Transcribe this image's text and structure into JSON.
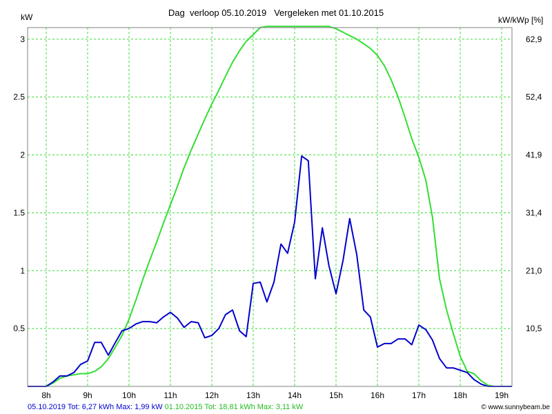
{
  "chart_data": {
    "type": "line",
    "title": "Dag  verloop 05.10.2019   Vergeleken met 01.10.2015",
    "ylabel_left": "kW",
    "ylabel_right": "kW/kWp [%]",
    "ylim": [
      0,
      3.1
    ],
    "xlim": [
      7.55,
      19.25
    ],
    "grid": true,
    "x_ticks": [
      {
        "value": 8,
        "label": "8h"
      },
      {
        "value": 9,
        "label": "9h"
      },
      {
        "value": 10,
        "label": "10h"
      },
      {
        "value": 11,
        "label": "11h"
      },
      {
        "value": 12,
        "label": "12h"
      },
      {
        "value": 13,
        "label": "13h"
      },
      {
        "value": 14,
        "label": "14h"
      },
      {
        "value": 15,
        "label": "15h"
      },
      {
        "value": 16,
        "label": "16h"
      },
      {
        "value": 17,
        "label": "17h"
      },
      {
        "value": 18,
        "label": "18h"
      },
      {
        "value": 19,
        "label": "19h"
      }
    ],
    "y_ticks_left": [
      {
        "value": 0.5,
        "label": "0.5"
      },
      {
        "value": 1,
        "label": "1"
      },
      {
        "value": 1.5,
        "label": "1.5"
      },
      {
        "value": 2,
        "label": "2"
      },
      {
        "value": 2.5,
        "label": "2.5"
      },
      {
        "value": 3,
        "label": "3"
      }
    ],
    "y_ticks_right": [
      {
        "value": 0.5,
        "label": "10,5"
      },
      {
        "value": 1.0,
        "label": "21,0"
      },
      {
        "value": 1.5,
        "label": "31,4"
      },
      {
        "value": 2.0,
        "label": "41,9"
      },
      {
        "value": 2.5,
        "label": "52,4"
      },
      {
        "value": 3.0,
        "label": "62,9"
      }
    ],
    "series": [
      {
        "name": "05.10.2019",
        "color": "#0000cc",
        "x": [
          7.55,
          8.0,
          8.17,
          8.33,
          8.5,
          8.67,
          8.83,
          9.0,
          9.17,
          9.33,
          9.5,
          9.67,
          9.83,
          10.0,
          10.17,
          10.33,
          10.5,
          10.67,
          10.83,
          11.0,
          11.17,
          11.33,
          11.5,
          11.67,
          11.83,
          12.0,
          12.17,
          12.33,
          12.5,
          12.67,
          12.83,
          13.0,
          13.17,
          13.33,
          13.5,
          13.67,
          13.83,
          14.0,
          14.17,
          14.33,
          14.5,
          14.67,
          14.83,
          15.0,
          15.17,
          15.33,
          15.5,
          15.67,
          15.83,
          16.0,
          16.17,
          16.33,
          16.5,
          16.67,
          16.83,
          17.0,
          17.17,
          17.33,
          17.5,
          17.67,
          17.83,
          18.0,
          18.17,
          18.33,
          18.5,
          18.67,
          18.83,
          19.0,
          19.17,
          19.25
        ],
        "y": [
          0.0,
          0.0,
          0.04,
          0.09,
          0.09,
          0.12,
          0.19,
          0.22,
          0.38,
          0.38,
          0.27,
          0.38,
          0.48,
          0.5,
          0.54,
          0.56,
          0.56,
          0.55,
          0.6,
          0.64,
          0.59,
          0.51,
          0.56,
          0.55,
          0.42,
          0.44,
          0.5,
          0.62,
          0.66,
          0.48,
          0.43,
          0.89,
          0.9,
          0.73,
          0.9,
          1.23,
          1.15,
          1.42,
          1.99,
          1.95,
          0.93,
          1.37,
          1.04,
          0.8,
          1.09,
          1.45,
          1.14,
          0.66,
          0.6,
          0.34,
          0.37,
          0.37,
          0.41,
          0.41,
          0.36,
          0.53,
          0.49,
          0.4,
          0.24,
          0.16,
          0.16,
          0.14,
          0.12,
          0.06,
          0.02,
          0.0,
          0.0,
          0.0,
          0.0,
          0.0
        ]
      },
      {
        "name": "01.10.2015",
        "color": "#33dd33",
        "x": [
          7.55,
          8.0,
          8.17,
          8.33,
          8.5,
          8.67,
          8.83,
          9.0,
          9.17,
          9.33,
          9.5,
          9.67,
          9.83,
          10.0,
          10.17,
          10.33,
          10.5,
          10.67,
          10.83,
          11.0,
          11.17,
          11.33,
          11.5,
          11.67,
          11.83,
          12.0,
          12.17,
          12.33,
          12.5,
          12.67,
          12.83,
          13.0,
          13.17,
          13.33,
          13.5,
          13.67,
          13.83,
          14.0,
          14.17,
          14.33,
          14.5,
          14.67,
          14.83,
          15.0,
          15.17,
          15.33,
          15.5,
          15.67,
          15.83,
          16.0,
          16.17,
          16.33,
          16.5,
          16.67,
          16.83,
          17.0,
          17.17,
          17.33,
          17.5,
          17.67,
          17.83,
          18.0,
          18.17,
          18.33,
          18.5,
          18.67,
          18.83,
          19.0,
          19.17,
          19.25
        ],
        "y": [
          0.0,
          0.0,
          0.03,
          0.07,
          0.09,
          0.1,
          0.11,
          0.11,
          0.13,
          0.17,
          0.24,
          0.34,
          0.44,
          0.58,
          0.75,
          0.92,
          1.09,
          1.25,
          1.41,
          1.57,
          1.73,
          1.89,
          2.04,
          2.18,
          2.31,
          2.44,
          2.56,
          2.68,
          2.8,
          2.9,
          2.98,
          3.04,
          3.1,
          3.11,
          3.11,
          3.11,
          3.11,
          3.11,
          3.11,
          3.11,
          3.11,
          3.11,
          3.11,
          3.09,
          3.06,
          3.03,
          3.0,
          2.96,
          2.92,
          2.86,
          2.77,
          2.65,
          2.5,
          2.32,
          2.14,
          1.98,
          1.78,
          1.46,
          0.93,
          0.66,
          0.46,
          0.26,
          0.13,
          0.11,
          0.05,
          0.01,
          0.0,
          0.0,
          0.0,
          0.0
        ]
      }
    ]
  },
  "footer": {
    "series1_label": "05.10.2019 Tot: 6,27 kWh Max: 1,99 kW",
    "series2_label": "01.10.2015 Tot: 18,81 kWh Max: 3,11 kW",
    "credit": "© www.sunnybeam.be",
    "series1_color": "#0000cc",
    "series2_color": "#22bb22"
  }
}
